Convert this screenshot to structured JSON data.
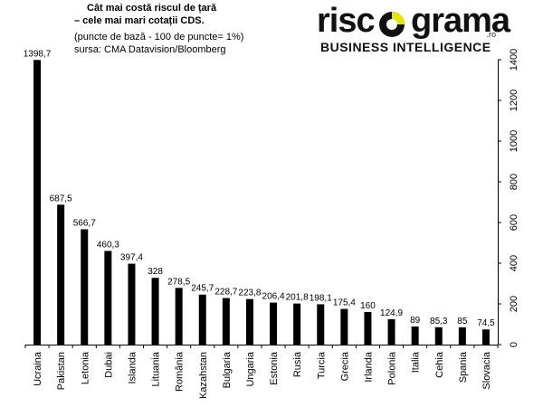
{
  "header": {
    "title_line1": "Cât mai costă riscul de țară",
    "title_line2": "– cele mai mari cotații CDS.",
    "note": "(puncte de bază - 100 de puncte= 1%)",
    "source": "sursa: CMA Datavision/Bloomberg"
  },
  "logo": {
    "word_left": "risc",
    "word_right": "grama",
    "domain": ".ro",
    "tagline": "BUSINESS INTELLIGENCE"
  },
  "chart_data": {
    "type": "bar",
    "title": "Cât mai costă riscul de țară – cele mai mari cotații CDS.",
    "categories": [
      "Ucraina",
      "Pakistan",
      "Letonia",
      "Dubai",
      "Islanda",
      "Lituania",
      "România",
      "Kazahstan",
      "Bulgaria",
      "Ungaria",
      "Estonia",
      "Rusia",
      "Turcia",
      "Grecia",
      "Irlanda",
      "Polonia",
      "Italia",
      "Cehia",
      "Spania",
      "Slovacia"
    ],
    "values": [
      1398.7,
      687.5,
      566.7,
      460.3,
      397.4,
      328,
      278.5,
      245.7,
      228.7,
      223.8,
      206.4,
      201.8,
      198.1,
      175.4,
      160,
      124.9,
      89,
      85.3,
      85,
      74.5
    ],
    "value_labels": [
      "1398,7",
      "687,5",
      "566,7",
      "460,3",
      "397,4",
      "328",
      "278,5",
      "245,7",
      "228,7",
      "223,8",
      "206,4",
      "201,8",
      "198,1",
      "175,4",
      "160",
      "124,9",
      "89",
      "85,3",
      "85",
      "74,5"
    ],
    "ylim": [
      0,
      1400
    ],
    "yticks": [
      0,
      200,
      400,
      600,
      800,
      1000,
      1200,
      1400
    ],
    "y_axis_side": "right",
    "grid": false,
    "bar_color": "#000000"
  }
}
